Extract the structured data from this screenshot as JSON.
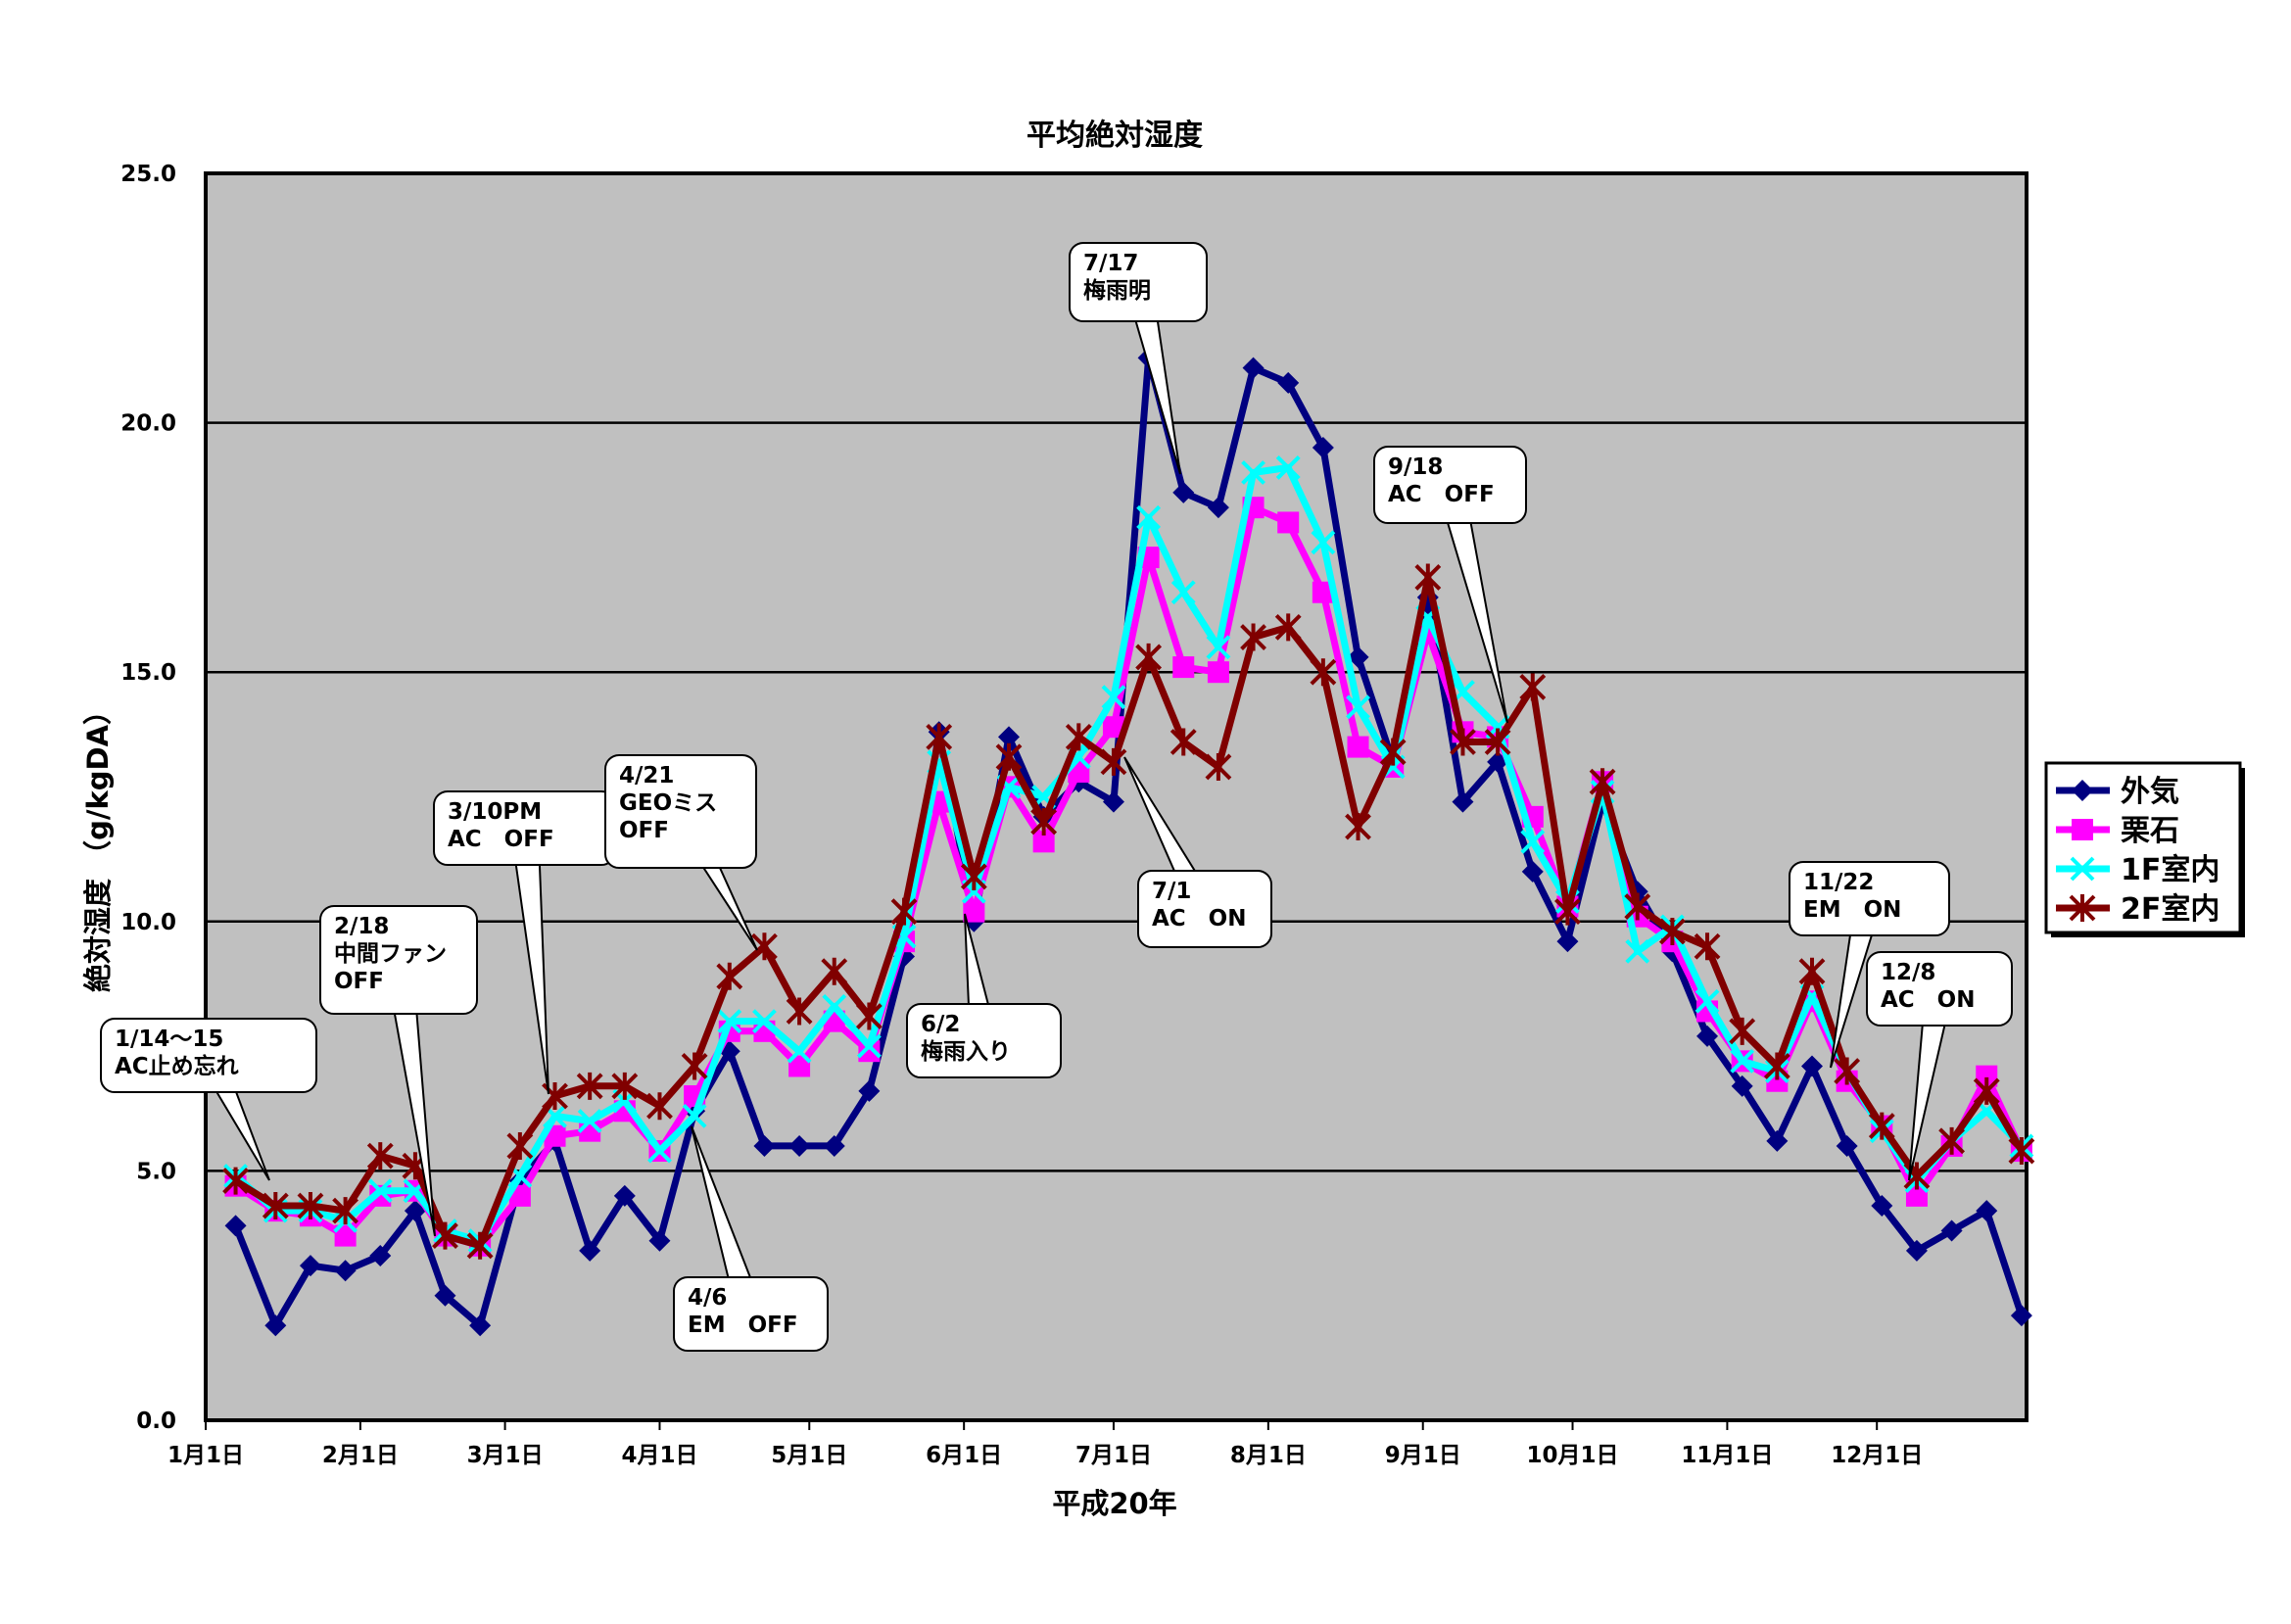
{
  "chart_data": {
    "type": "line",
    "title": "平均絶対湿度",
    "xlabel": "平成20年",
    "ylabel": "絶対湿度 （g/kgDA）",
    "ylim": [
      0,
      25
    ],
    "yticks": [
      "0.0",
      "5.0",
      "10.0",
      "15.0",
      "20.0",
      "25.0"
    ],
    "xlim": [
      0,
      365
    ],
    "xticks": [
      {
        "day": 0,
        "label": "1月1日"
      },
      {
        "day": 31,
        "label": "2月1日"
      },
      {
        "day": 60,
        "label": "3月1日"
      },
      {
        "day": 91,
        "label": "4月1日"
      },
      {
        "day": 121,
        "label": "5月1日"
      },
      {
        "day": 152,
        "label": "6月1日"
      },
      {
        "day": 182,
        "label": "7月1日"
      },
      {
        "day": 213,
        "label": "8月1日"
      },
      {
        "day": 244,
        "label": "9月1日"
      },
      {
        "day": 274,
        "label": "10月1日"
      },
      {
        "day": 305,
        "label": "11月1日"
      },
      {
        "day": 335,
        "label": "12月1日"
      }
    ],
    "grid": true,
    "legend_position": "right",
    "x": [
      6,
      14,
      21,
      28,
      35,
      42,
      48,
      55,
      63,
      70,
      77,
      84,
      91,
      98,
      105,
      112,
      119,
      126,
      133,
      140,
      147,
      154,
      161,
      168,
      175,
      182,
      189,
      196,
      203,
      210,
      217,
      224,
      231,
      238,
      245,
      252,
      259,
      266,
      273,
      280,
      287,
      294,
      301,
      308,
      315,
      322,
      329,
      336,
      343,
      350,
      357,
      364
    ],
    "series": [
      {
        "name": "外気",
        "color": "#000080",
        "marker": "diamond",
        "values": [
          3.9,
          1.9,
          3.1,
          3.0,
          3.3,
          4.2,
          2.5,
          1.9,
          4.8,
          5.6,
          3.4,
          4.5,
          3.6,
          6.2,
          7.4,
          5.5,
          5.5,
          5.5,
          6.6,
          9.3,
          13.8,
          10.0,
          13.7,
          12.1,
          12.8,
          12.4,
          21.3,
          18.6,
          18.3,
          21.1,
          20.8,
          19.5,
          15.3,
          13.2,
          16.5,
          12.4,
          13.2,
          11.0,
          9.6,
          12.4,
          10.6,
          9.4,
          7.7,
          6.7,
          5.6,
          7.1,
          5.5,
          4.3,
          3.4,
          3.8,
          4.2,
          2.1
        ]
      },
      {
        "name": "栗石",
        "color": "#ff00ff",
        "marker": "square",
        "values": [
          4.7,
          4.2,
          4.1,
          3.7,
          4.5,
          4.6,
          3.7,
          3.5,
          4.5,
          5.7,
          5.8,
          6.2,
          5.4,
          6.5,
          7.8,
          7.8,
          7.1,
          8.0,
          7.4,
          9.6,
          12.4,
          10.2,
          12.7,
          11.6,
          13.0,
          13.9,
          17.3,
          15.1,
          15.0,
          18.3,
          18.0,
          16.6,
          13.5,
          13.1,
          15.8,
          13.8,
          13.7,
          12.1,
          10.3,
          12.8,
          10.1,
          9.6,
          8.2,
          7.2,
          6.8,
          8.4,
          6.8,
          5.9,
          4.5,
          5.5,
          6.9,
          5.4
        ]
      },
      {
        "name": "1F室内",
        "color": "#00ffff",
        "marker": "x",
        "values": [
          4.9,
          4.2,
          4.2,
          4.0,
          4.6,
          4.6,
          3.8,
          3.6,
          4.9,
          6.1,
          6.0,
          6.4,
          5.4,
          6.1,
          8.0,
          8.0,
          7.4,
          8.3,
          7.5,
          9.7,
          13.2,
          10.6,
          12.7,
          12.5,
          13.3,
          14.5,
          18.1,
          16.6,
          15.5,
          19.0,
          19.1,
          17.6,
          14.3,
          13.1,
          16.1,
          14.6,
          13.9,
          11.6,
          10.4,
          12.6,
          9.4,
          9.9,
          8.4,
          7.2,
          7.0,
          8.5,
          7.0,
          5.8,
          4.8,
          5.6,
          6.2,
          5.5
        ]
      },
      {
        "name": "2F室内",
        "color": "#800000",
        "marker": "star",
        "values": [
          4.8,
          4.3,
          4.3,
          4.2,
          5.3,
          5.1,
          3.7,
          3.5,
          5.5,
          6.5,
          6.7,
          6.7,
          6.3,
          7.1,
          8.9,
          9.5,
          8.2,
          9.0,
          8.1,
          10.2,
          13.7,
          10.9,
          13.3,
          12.0,
          13.7,
          13.2,
          15.3,
          13.6,
          13.1,
          15.7,
          15.9,
          15.0,
          11.9,
          13.4,
          16.9,
          13.6,
          13.6,
          14.7,
          10.2,
          12.8,
          10.3,
          9.8,
          9.5,
          7.8,
          7.1,
          9.0,
          7.0,
          5.9,
          4.9,
          5.6,
          6.6,
          5.4
        ]
      }
    ],
    "annotations": [
      {
        "lines": [
          "1/14～15",
          "AC止め忘れ"
        ]
      },
      {
        "lines": [
          "2/18",
          "中間ファン",
          "OFF"
        ]
      },
      {
        "lines": [
          "3/10PM",
          "AC　OFF"
        ]
      },
      {
        "lines": [
          "4/6",
          "EM　OFF"
        ]
      },
      {
        "lines": [
          "4/21",
          "GEOミス",
          "OFF"
        ]
      },
      {
        "lines": [
          "6/2",
          "梅雨入り"
        ]
      },
      {
        "lines": [
          "7/1",
          "AC　ON"
        ]
      },
      {
        "lines": [
          "7/17",
          "梅雨明"
        ]
      },
      {
        "lines": [
          "9/18",
          "AC　OFF"
        ]
      },
      {
        "lines": [
          "11/22",
          "EM　ON"
        ]
      },
      {
        "lines": [
          "12/8",
          "AC　ON"
        ]
      }
    ]
  }
}
